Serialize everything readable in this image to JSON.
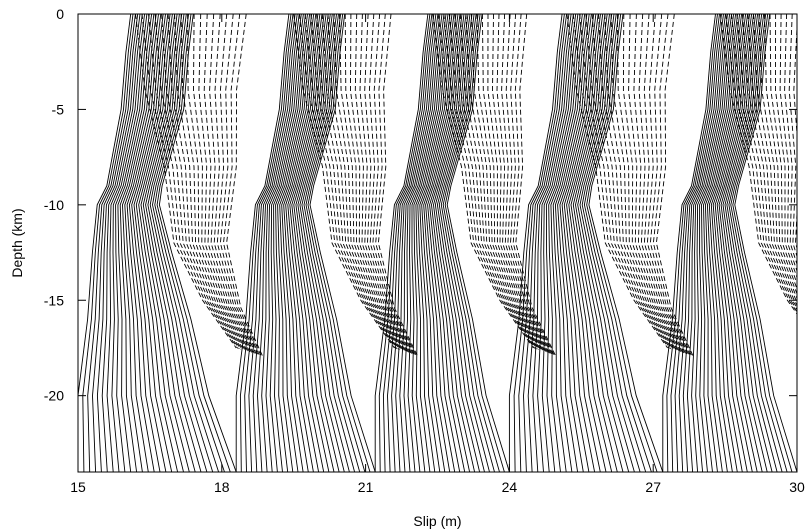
{
  "chart_data": {
    "type": "line",
    "title": "",
    "xlabel": "Slip (m)",
    "ylabel": "Depth (km)",
    "xlim": [
      15,
      30
    ],
    "ylim": [
      -24,
      0
    ],
    "xticks": [
      15,
      18,
      21,
      24,
      27,
      30
    ],
    "yticks": [
      0,
      -5,
      -10,
      -15,
      -20
    ],
    "grid": false,
    "legend": "none",
    "colors": {
      "line": "#000000",
      "frame": "#000000",
      "background": "#ffffff"
    },
    "cycles": [
      {
        "start_slip": 15.0,
        "end_slip": 18.3
      },
      {
        "start_slip": 18.3,
        "end_slip": 21.2
      },
      {
        "start_slip": 21.2,
        "end_slip": 24.0
      },
      {
        "start_slip": 24.0,
        "end_slip": 27.2
      },
      {
        "start_slip": 27.2,
        "end_slip": 30.0
      }
    ],
    "series": [
      {
        "style": "solid",
        "note_depth_range": [
          -24,
          -9
        ],
        "lines_per_cycle": 28,
        "curve_points": [
          {
            "y": -24.0,
            "x": 15.0
          },
          {
            "y": -20.0,
            "x": 15.0
          },
          {
            "y": -16.0,
            "x": 15.2
          },
          {
            "y": -12.5,
            "x": 15.3
          },
          {
            "y": -10.0,
            "x": 15.4
          },
          {
            "y": -9.0,
            "x": 15.6
          },
          {
            "y": -5.0,
            "x": 15.9
          },
          {
            "y": -2.0,
            "x": 16.0
          },
          {
            "y": 0.0,
            "x": 16.1
          }
        ]
      },
      {
        "style": "dashed",
        "note_depth_range": [
          -18,
          0
        ],
        "lines_per_cycle": 18,
        "curve_points": [
          {
            "y": 0.0,
            "x": 16.2
          },
          {
            "y": -4.0,
            "x": 16.4
          },
          {
            "y": -8.0,
            "x": 16.8
          },
          {
            "y": -12.0,
            "x": 17.0
          },
          {
            "y": -15.0,
            "x": 17.6
          },
          {
            "y": -17.5,
            "x": 18.3
          }
        ]
      }
    ]
  }
}
